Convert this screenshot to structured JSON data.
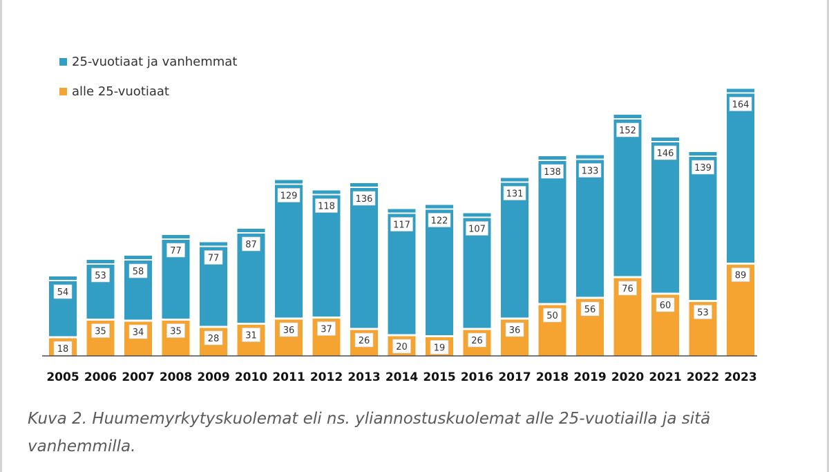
{
  "chart_data": {
    "type": "bar",
    "stacked": true,
    "categories": [
      "2005",
      "2006",
      "2007",
      "2008",
      "2009",
      "2010",
      "2011",
      "2012",
      "2013",
      "2014",
      "2015",
      "2016",
      "2017",
      "2018",
      "2019",
      "2020",
      "2021",
      "2022",
      "2023"
    ],
    "series": [
      {
        "name": "alle 25-vuotiaat",
        "color": "#f6a431",
        "values": [
          18,
          35,
          34,
          35,
          28,
          31,
          36,
          37,
          26,
          20,
          19,
          26,
          36,
          50,
          56,
          76,
          60,
          53,
          89
        ]
      },
      {
        "name": "25-vuotiaat ja vanhemmat",
        "color": "#339ec4",
        "values": [
          54,
          53,
          58,
          77,
          77,
          87,
          129,
          118,
          136,
          117,
          122,
          107,
          131,
          138,
          133,
          152,
          146,
          139,
          164
        ]
      }
    ],
    "legend": [
      "25-vuotiaat ja vanhemmat",
      "alle 25-vuotiaat"
    ],
    "legend_position": "top-left",
    "grid": false,
    "ylim": [
      0,
      260
    ],
    "data_labels": true
  },
  "caption": "Kuva 2. Huumemyrkytyskuolemat eli ns. yliannostuskuolemat alle 25-vuotiailla ja sitä vanhemmilla."
}
